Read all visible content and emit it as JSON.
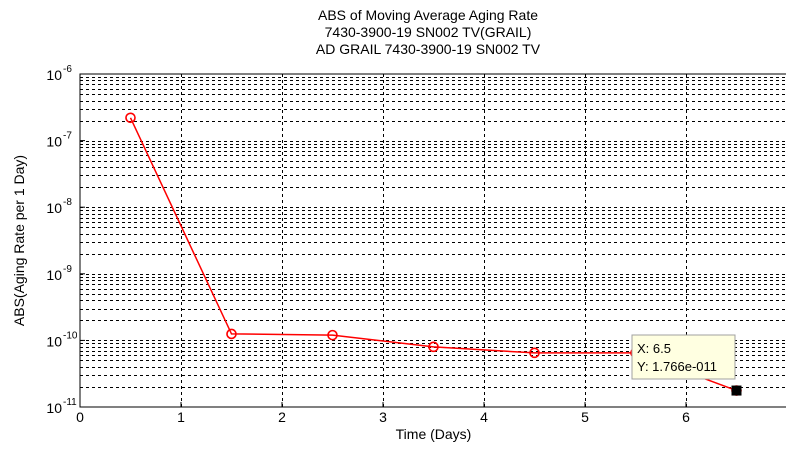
{
  "chart_data": {
    "type": "line",
    "title": [
      "ABS of Moving Average Aging Rate",
      "7430-3900-19 SN002 TV(GRAIL)",
      "AD GRAIL 7430-3900-19 SN002 TV"
    ],
    "xlabel": "Time (Days)",
    "ylabel": "ABS(Aging Rate per 1 Day)",
    "xlim": [
      0,
      7
    ],
    "ylim": [
      1e-11,
      1e-06
    ],
    "yscale": "log",
    "grid": true,
    "x_ticks": [
      "0",
      "1",
      "2",
      "3",
      "4",
      "5",
      "6"
    ],
    "y_ticks": [
      {
        "base": "10",
        "exp": "-11"
      },
      {
        "base": "10",
        "exp": "-10"
      },
      {
        "base": "10",
        "exp": "-9"
      },
      {
        "base": "10",
        "exp": "-8"
      },
      {
        "base": "10",
        "exp": "-7"
      },
      {
        "base": "10",
        "exp": "-6"
      }
    ],
    "series": [
      {
        "color": "#ff0000",
        "marker": "circle",
        "x": [
          0.5,
          1.5,
          2.5,
          3.5,
          4.5,
          5.5,
          6.5
        ],
        "y": [
          2.2e-07,
          1.25e-10,
          1.2e-10,
          8e-11,
          6.5e-11,
          6.5e-11,
          1.766e-11
        ]
      }
    ],
    "datatip": {
      "x_label": "X: 6.5",
      "y_label": "Y: 1.766e-011",
      "point_x": 6.5,
      "point_y": 1.766e-11,
      "marker_color": "#000000"
    }
  }
}
